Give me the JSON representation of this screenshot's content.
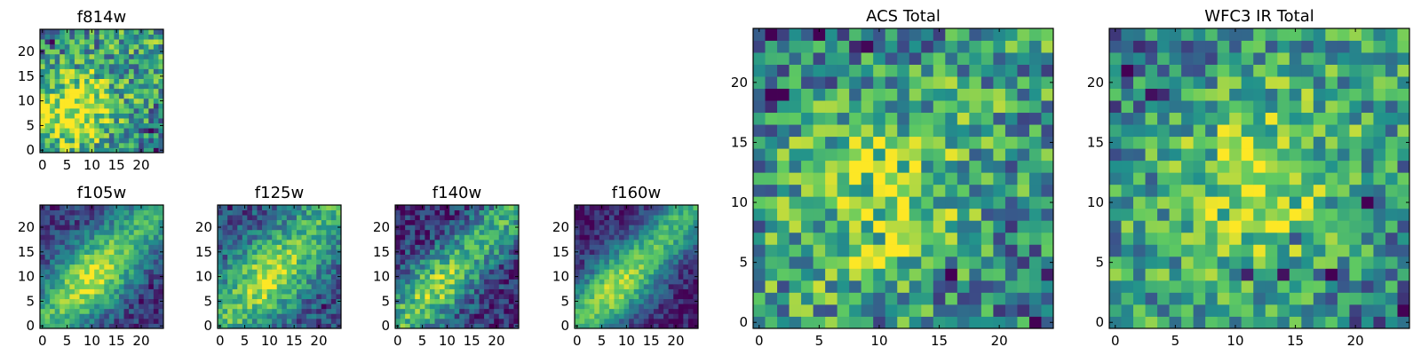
{
  "chart_data": {
    "type": "heatmap",
    "colormap": "viridis",
    "colormap_stops": [
      "#440154",
      "#3b528b",
      "#21918c",
      "#5ec962",
      "#fde725"
    ],
    "grid_size": 25,
    "panels": [
      {
        "id": "f814w",
        "title": "f814w",
        "xticks": [
          0,
          5,
          10,
          15,
          20
        ],
        "yticks": [
          0,
          5,
          10,
          15,
          20
        ],
        "xlim": [
          -0.5,
          24.5
        ],
        "ylim": [
          -0.5,
          24.5
        ],
        "pattern": {
          "band": 0.25,
          "band_width": 10,
          "center": [
            6,
            8
          ],
          "center_strength": 0.45,
          "noise": 0.34,
          "base": 0.48,
          "spots": [
            [
              0,
              24,
              -0.4
            ],
            [
              2,
              22,
              -0.35
            ],
            [
              22,
              4,
              -0.3
            ],
            [
              19,
              11,
              -0.3
            ],
            [
              23,
              0,
              -0.45
            ]
          ],
          "seed": 11
        }
      },
      {
        "id": "f105w",
        "title": "f105w",
        "xticks": [
          0,
          5,
          10,
          15,
          20
        ],
        "yticks": [
          0,
          5,
          10,
          15,
          20
        ],
        "xlim": [
          -0.5,
          24.5
        ],
        "ylim": [
          -0.5,
          24.5
        ],
        "pattern": {
          "band": 0.5,
          "band_width": 4.5,
          "center": [
            10,
            10
          ],
          "center_strength": 0.3,
          "noise": 0.16,
          "base": 0.3,
          "spots": [
            [
              20,
              5,
              -0.4
            ],
            [
              2,
              24,
              -0.35
            ],
            [
              22,
              8,
              -0.3
            ]
          ],
          "seed": 23
        }
      },
      {
        "id": "f125w",
        "title": "f125w",
        "xticks": [
          0,
          5,
          10,
          15,
          20
        ],
        "yticks": [
          0,
          5,
          10,
          15,
          20
        ],
        "xlim": [
          -0.5,
          24.5
        ],
        "ylim": [
          -0.5,
          24.5
        ],
        "pattern": {
          "band": 0.42,
          "band_width": 5,
          "center": [
            10,
            10
          ],
          "center_strength": 0.25,
          "noise": 0.2,
          "base": 0.38,
          "spots": [
            [
              21,
              4,
              -0.4
            ],
            [
              23,
              2,
              -0.3
            ],
            [
              2,
              24,
              -0.3
            ]
          ],
          "seed": 37
        }
      },
      {
        "id": "f140w",
        "title": "f140w",
        "xticks": [
          0,
          5,
          10,
          15,
          20
        ],
        "yticks": [
          0,
          5,
          10,
          15,
          20
        ],
        "xlim": [
          -0.5,
          24.5
        ],
        "ylim": [
          -0.5,
          24.5
        ],
        "pattern": {
          "band": 0.52,
          "band_width": 4,
          "center": [
            8,
            8
          ],
          "center_strength": 0.2,
          "noise": 0.22,
          "base": 0.26,
          "spots": [
            [
              19,
              0,
              -0.5
            ],
            [
              20,
              0,
              -0.5
            ],
            [
              4,
              19,
              -0.4
            ],
            [
              6,
              15,
              -0.35
            ],
            [
              3,
              23,
              -0.4
            ]
          ],
          "seed": 41
        }
      },
      {
        "id": "f160w",
        "title": "f160w",
        "xticks": [
          0,
          5,
          10,
          15,
          20
        ],
        "yticks": [
          0,
          5,
          10,
          15,
          20
        ],
        "xlim": [
          -0.5,
          24.5
        ],
        "ylim": [
          -0.5,
          24.5
        ],
        "pattern": {
          "band": 0.58,
          "band_width": 4,
          "center": [
            8,
            8
          ],
          "center_strength": 0.2,
          "noise": 0.14,
          "base": 0.24,
          "spots": [
            [
              1,
              24,
              -0.5
            ],
            [
              0,
              22,
              -0.45
            ],
            [
              23,
              6,
              -0.3
            ],
            [
              21,
              3,
              -0.3
            ]
          ],
          "seed": 53
        }
      },
      {
        "id": "acs_total",
        "title": "ACS Total",
        "xticks": [
          0,
          5,
          10,
          15,
          20
        ],
        "yticks": [
          0,
          5,
          10,
          15,
          20
        ],
        "xlim": [
          -0.5,
          24.5
        ],
        "ylim": [
          -0.5,
          24.5
        ],
        "pattern": {
          "band": 0.18,
          "band_width": 10,
          "center": [
            10,
            11
          ],
          "center_strength": 0.3,
          "noise": 0.34,
          "base": 0.5,
          "spots": [
            [
              1,
              24,
              -0.45
            ],
            [
              4,
              24,
              -0.45
            ],
            [
              5,
              24,
              -0.45
            ],
            [
              8,
              23,
              -0.4
            ],
            [
              9,
              23,
              -0.4
            ],
            [
              0,
              19,
              -0.45
            ],
            [
              1,
              19,
              -0.45
            ],
            [
              2,
              19,
              -0.45
            ],
            [
              16,
              4,
              -0.4
            ],
            [
              23,
              0,
              -0.4
            ]
          ],
          "seed": 71
        }
      },
      {
        "id": "wfc3_ir_total",
        "title": "WFC3 IR Total",
        "xticks": [
          0,
          5,
          10,
          15,
          20
        ],
        "yticks": [
          0,
          5,
          10,
          15,
          20
        ],
        "xlim": [
          -0.5,
          24.5
        ],
        "ylim": [
          -0.5,
          24.5
        ],
        "pattern": {
          "band": 0.2,
          "band_width": 10,
          "center": [
            12,
            11
          ],
          "center_strength": 0.3,
          "noise": 0.3,
          "base": 0.5,
          "spots": [
            [
              3,
              19,
              -0.45
            ],
            [
              4,
              19,
              -0.45
            ],
            [
              1,
              21,
              -0.45
            ],
            [
              21,
              10,
              -0.45
            ],
            [
              14,
              4,
              -0.45
            ],
            [
              17,
              4,
              -0.45
            ],
            [
              18,
              4,
              -0.45
            ],
            [
              11,
              4,
              -0.45
            ],
            [
              24,
              1,
              -0.45
            ],
            [
              15,
              7,
              -0.4
            ]
          ],
          "seed": 89
        }
      }
    ]
  }
}
